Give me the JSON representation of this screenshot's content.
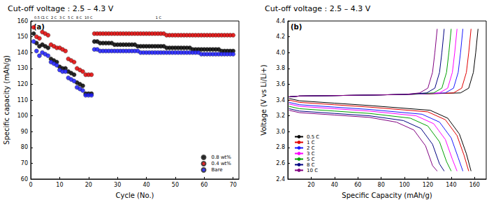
{
  "chart_data": [
    {
      "type": "scatter",
      "title": "Cut-off voltage : 2.5 – 4.3 V",
      "panel_label": "(a)",
      "x_label": "Cycle (No.)",
      "y_label": "Specific capacity (mAh/g)",
      "annotations": [
        "0.5 C",
        "1 C",
        "2 C",
        "3 C",
        "5 C",
        "8 C",
        "10 C",
        "1 C"
      ],
      "marker": "circle",
      "grid": false,
      "legend": "bottom-right",
      "xlim": [
        0,
        72
      ],
      "xticks": [
        0,
        10,
        20,
        30,
        40,
        50,
        60,
        70
      ],
      "ylim": [
        60,
        160
      ],
      "yticks": [
        60,
        70,
        80,
        90,
        100,
        110,
        120,
        130,
        140,
        150,
        160
      ],
      "x": [
        1,
        2,
        3,
        4,
        5,
        6,
        7,
        8,
        9,
        10,
        11,
        12,
        13,
        14,
        15,
        16,
        17,
        18,
        19,
        20,
        21,
        22,
        23,
        24,
        25,
        26,
        27,
        28,
        29,
        30,
        31,
        32,
        33,
        34,
        35,
        36,
        37,
        38,
        39,
        40,
        41,
        42,
        43,
        44,
        45,
        46,
        47,
        48,
        49,
        50,
        51,
        52,
        53,
        54,
        55,
        56,
        57,
        58,
        59,
        60,
        61,
        62,
        63,
        64,
        65,
        66,
        67,
        68,
        69,
        70
      ],
      "series": [
        {
          "name": "0.8 wt%",
          "color": "#000000",
          "values": [
            152,
            146,
            144,
            145,
            144,
            143,
            136,
            135,
            134,
            131,
            130,
            130,
            128,
            127,
            126,
            121,
            120,
            119,
            114,
            114,
            114,
            147,
            147,
            146,
            146,
            146,
            146,
            146,
            145,
            145,
            145,
            145,
            145,
            145,
            145,
            145,
            144,
            144,
            144,
            144,
            144,
            144,
            144,
            144,
            144,
            144,
            143,
            143,
            143,
            143,
            143,
            143,
            143,
            143,
            143,
            142,
            142,
            142,
            142,
            142,
            142,
            142,
            142,
            142,
            142,
            141,
            141,
            141,
            141,
            141
          ]
        },
        {
          "name": "0.4 wt%",
          "color": "#e00000",
          "values": [
            156,
            150,
            149,
            153,
            152,
            151,
            145,
            144,
            143,
            143,
            142,
            141,
            136,
            135,
            134,
            130,
            129,
            128,
            126,
            126,
            126,
            152,
            152,
            152,
            152,
            152,
            152,
            152,
            152,
            152,
            152,
            152,
            152,
            152,
            152,
            152,
            152,
            152,
            152,
            152,
            152,
            152,
            152,
            152,
            152,
            152,
            151,
            151,
            151,
            151,
            151,
            151,
            151,
            151,
            151,
            151,
            151,
            151,
            151,
            151,
            151,
            151,
            151,
            151,
            151,
            151,
            151,
            151,
            151,
            151
          ]
        },
        {
          "name": "Bare",
          "color": "#1a1aff",
          "values": [
            147,
            141,
            138,
            140,
            139,
            138,
            134,
            133,
            132,
            129,
            128,
            128,
            124,
            123,
            122,
            118,
            117,
            116,
            113,
            113,
            113,
            142,
            142,
            141,
            141,
            141,
            141,
            141,
            141,
            141,
            141,
            141,
            141,
            141,
            141,
            141,
            141,
            140,
            140,
            140,
            140,
            140,
            140,
            140,
            140,
            140,
            140,
            140,
            140,
            140,
            140,
            140,
            140,
            140,
            140,
            140,
            140,
            140,
            139,
            139,
            139,
            139,
            139,
            139,
            139,
            139,
            139,
            139,
            139,
            139
          ]
        }
      ]
    },
    {
      "type": "line",
      "title": "Cut-off voltage : 2.5 – 4.3 V",
      "panel_label": "(b)",
      "x_label": "Specific Capacity (mAh/g)",
      "y_label": "Voltage (V vs Li/Li+)",
      "marker": "none",
      "grid": false,
      "legend": "bottom-left",
      "xlim": [
        0,
        170
      ],
      "xticks": [
        20,
        40,
        60,
        80,
        100,
        120,
        140,
        160
      ],
      "ylim": [
        2.4,
        4.4
      ],
      "yticks": [
        2.4,
        2.6,
        2.8,
        {
          "value": 3,
          "label": "3.0"
        },
        3.2,
        3.4,
        3.6,
        3.8,
        {
          "value": 4,
          "label": "4.0"
        },
        4.2,
        4.4
      ],
      "series": [
        {
          "name": "0.5 C",
          "color": "#000000",
          "x": [
            1,
            10,
            60,
            100,
            148,
            155,
            159,
            161,
            163,
            null,
            1,
            10,
            40,
            70,
            122,
            137,
            147,
            153,
            157
          ],
          "values": [
            3.44,
            3.45,
            3.46,
            3.47,
            3.49,
            3.55,
            3.75,
            4.0,
            4.3,
            null,
            3.42,
            3.39,
            3.36,
            3.33,
            3.27,
            3.17,
            2.97,
            2.72,
            2.5
          ]
        },
        {
          "name": "1 C",
          "color": "#e00000",
          "x": [
            1,
            10,
            60,
            100,
            142,
            149,
            153,
            155,
            157,
            null,
            1,
            10,
            40,
            70,
            120,
            135,
            145,
            151,
            155
          ],
          "values": [
            3.44,
            3.45,
            3.46,
            3.47,
            3.49,
            3.55,
            3.75,
            4.0,
            4.3,
            null,
            3.4,
            3.37,
            3.34,
            3.31,
            3.25,
            3.15,
            2.95,
            2.7,
            2.5
          ]
        },
        {
          "name": "2 C",
          "color": "#1a1aff",
          "x": [
            1,
            10,
            60,
            100,
            135,
            142,
            146,
            148,
            150,
            null,
            1,
            10,
            40,
            70,
            115,
            130,
            140,
            146,
            150
          ],
          "values": [
            3.44,
            3.45,
            3.46,
            3.47,
            3.49,
            3.55,
            3.75,
            4.0,
            4.3,
            null,
            3.37,
            3.34,
            3.31,
            3.28,
            3.22,
            3.12,
            2.92,
            2.67,
            2.5
          ]
        },
        {
          "name": "3 C",
          "color": "#ff00ff",
          "x": [
            1,
            10,
            60,
            100,
            130,
            137,
            141,
            143,
            145,
            null,
            1,
            10,
            40,
            70,
            110,
            125,
            135,
            141,
            145
          ],
          "values": [
            3.44,
            3.45,
            3.46,
            3.47,
            3.49,
            3.55,
            3.75,
            4.0,
            4.3,
            null,
            3.35,
            3.32,
            3.29,
            3.26,
            3.2,
            3.1,
            2.9,
            2.65,
            2.5
          ]
        },
        {
          "name": "5 C",
          "color": "#00a000",
          "x": [
            1,
            10,
            60,
            100,
            125,
            132,
            136,
            138,
            140,
            null,
            1,
            10,
            40,
            70,
            105,
            120,
            130,
            136,
            140
          ],
          "values": [
            3.44,
            3.45,
            3.46,
            3.47,
            3.49,
            3.55,
            3.75,
            4.0,
            4.3,
            null,
            3.32,
            3.29,
            3.26,
            3.23,
            3.17,
            3.07,
            2.87,
            2.62,
            2.5
          ]
        },
        {
          "name": "8 C",
          "color": "#000080",
          "x": [
            1,
            10,
            60,
            100,
            119,
            126,
            130,
            132,
            134,
            null,
            1,
            10,
            40,
            70,
            99,
            114,
            124,
            130,
            134
          ],
          "values": [
            3.44,
            3.45,
            3.46,
            3.47,
            3.49,
            3.55,
            3.75,
            4.0,
            4.3,
            null,
            3.29,
            3.26,
            3.23,
            3.2,
            3.14,
            3.04,
            2.84,
            2.59,
            2.5
          ]
        },
        {
          "name": "10 C",
          "color": "#800080",
          "x": [
            1,
            10,
            60,
            100,
            113,
            120,
            124,
            126,
            128,
            null,
            1,
            10,
            40,
            70,
            93,
            108,
            118,
            124,
            128
          ],
          "values": [
            3.44,
            3.45,
            3.46,
            3.47,
            3.49,
            3.55,
            3.75,
            4.0,
            4.3,
            null,
            3.27,
            3.24,
            3.21,
            3.18,
            3.12,
            3.02,
            2.82,
            2.57,
            2.5
          ]
        }
      ]
    }
  ]
}
